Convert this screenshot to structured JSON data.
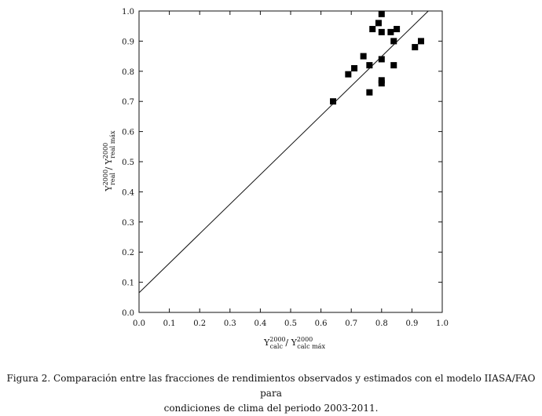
{
  "chart_data": {
    "type": "scatter",
    "title": "",
    "xlabel": {
      "base": "Y",
      "sub": "calc",
      "sup": "2000",
      "sep": " / ",
      "base2": "Y",
      "sub2": "calc máx",
      "sup2": "2000"
    },
    "ylabel": {
      "base": "Y",
      "sub": "real",
      "sup": "2000",
      "sep": " / ",
      "base2": "Y",
      "sub2": "real máx",
      "sup2": "2000"
    },
    "xlim": [
      0.0,
      1.0
    ],
    "ylim": [
      0.0,
      1.0
    ],
    "xticks": [
      "0.0",
      "0.1",
      "0.2",
      "0.3",
      "0.4",
      "0.5",
      "0.6",
      "0.7",
      "0.8",
      "0.9",
      "1.0"
    ],
    "yticks": [
      "0.0",
      "0.1",
      "0.2",
      "0.3",
      "0.4",
      "0.5",
      "0.6",
      "0.7",
      "0.8",
      "0.9",
      "1.0"
    ],
    "grid": false,
    "points": [
      {
        "x": 0.64,
        "y": 0.7
      },
      {
        "x": 0.69,
        "y": 0.79
      },
      {
        "x": 0.71,
        "y": 0.81
      },
      {
        "x": 0.74,
        "y": 0.85
      },
      {
        "x": 0.76,
        "y": 0.73
      },
      {
        "x": 0.76,
        "y": 0.82
      },
      {
        "x": 0.77,
        "y": 0.94
      },
      {
        "x": 0.79,
        "y": 0.96
      },
      {
        "x": 0.8,
        "y": 0.99
      },
      {
        "x": 0.8,
        "y": 0.93
      },
      {
        "x": 0.8,
        "y": 0.84
      },
      {
        "x": 0.8,
        "y": 0.77
      },
      {
        "x": 0.8,
        "y": 0.76
      },
      {
        "x": 0.83,
        "y": 0.93
      },
      {
        "x": 0.84,
        "y": 0.9
      },
      {
        "x": 0.84,
        "y": 0.82
      },
      {
        "x": 0.85,
        "y": 0.94
      },
      {
        "x": 0.91,
        "y": 0.88
      },
      {
        "x": 0.93,
        "y": 0.9
      }
    ],
    "fit_line": {
      "slope": 0.98,
      "intercept": 0.065
    }
  },
  "caption": {
    "line1": "Figura 2. Comparación entre las fracciones de rendimientos observados y estimados con el modelo IIASA/FAO para",
    "line2": "condiciones de clima del periodo 2003-2011."
  }
}
